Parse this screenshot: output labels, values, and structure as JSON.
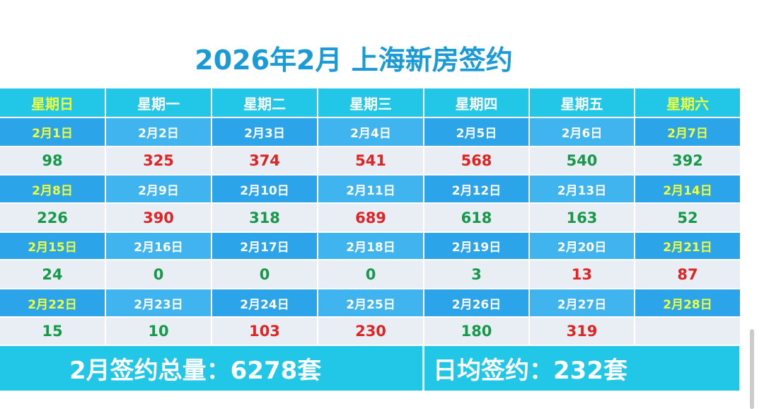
{
  "title": "2026年2月 上海新房签约",
  "weekdays": [
    "星期日",
    "星期一",
    "星期二",
    "星期三",
    "星期四",
    "星期五",
    "星期六"
  ],
  "palette": {
    "red": "#e02424",
    "green": "#17994a"
  },
  "weeks": [
    {
      "dates": [
        "2月1日",
        "2月2日",
        "2月3日",
        "2月4日",
        "2月5日",
        "2月6日",
        "2月7日"
      ],
      "values": [
        98,
        325,
        374,
        541,
        568,
        540,
        392
      ],
      "colors": [
        "green",
        "red",
        "red",
        "red",
        "red",
        "green",
        "green"
      ]
    },
    {
      "dates": [
        "2月8日",
        "2月9日",
        "2月10日",
        "2月11日",
        "2月12日",
        "2月13日",
        "2月14日"
      ],
      "values": [
        226,
        390,
        318,
        689,
        618,
        163,
        52
      ],
      "colors": [
        "green",
        "red",
        "green",
        "red",
        "green",
        "green",
        "green"
      ]
    },
    {
      "dates": [
        "2月15日",
        "2月16日",
        "2月17日",
        "2月18日",
        "2月19日",
        "2月20日",
        "2月21日"
      ],
      "values": [
        24,
        0,
        0,
        0,
        3,
        13,
        87
      ],
      "colors": [
        "green",
        "green",
        "green",
        "green",
        "green",
        "red",
        "red"
      ]
    },
    {
      "dates": [
        "2月22日",
        "2月23日",
        "2月24日",
        "2月25日",
        "2月26日",
        "2月27日",
        "2月28日"
      ],
      "values": [
        15,
        10,
        103,
        230,
        180,
        319,
        null
      ],
      "colors": [
        "green",
        "green",
        "red",
        "red",
        "green",
        "red",
        null
      ]
    }
  ],
  "footer": {
    "total": "2月签约总量：6278套",
    "average": "日均签约：232套"
  }
}
